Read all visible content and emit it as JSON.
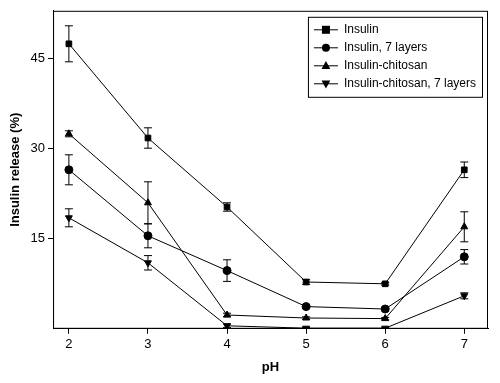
{
  "chart_data": {
    "type": "line",
    "x_label": "pH",
    "y_label": "Insulin release (%)",
    "x": [
      2,
      3,
      4,
      5,
      6,
      7
    ],
    "xlim": [
      1.8,
      7.3
    ],
    "xticks": [
      2,
      3,
      4,
      5,
      6,
      7
    ],
    "ylim": [
      0,
      53
    ],
    "yticks": [
      15,
      30,
      45
    ],
    "grid": false,
    "legend": "upper right",
    "series": [
      {
        "name": "Insulin",
        "color": "#000000",
        "marker": "square",
        "line_style": "solid",
        "values": [
          47.5,
          31.8,
          20.3,
          7.8,
          7.5,
          26.5
        ],
        "errors": [
          3.0,
          1.7,
          0.7,
          0.4,
          0.2,
          1.3
        ]
      },
      {
        "name": "Insulin, 7 layers",
        "color": "#000000",
        "marker": "circle",
        "line_style": "solid",
        "values": [
          26.5,
          15.5,
          9.7,
          3.7,
          3.3,
          12.0
        ],
        "errors": [
          2.5,
          2.0,
          1.8,
          0.3,
          0.3,
          1.2
        ]
      },
      {
        "name": "Insulin-chitosan",
        "color": "#000000",
        "marker": "triangle",
        "line_style": "solid",
        "values": [
          32.5,
          21.0,
          2.3,
          1.8,
          1.7,
          17.0
        ],
        "errors": [
          0.5,
          3.5,
          0.3,
          0.2,
          0.2,
          2.5
        ]
      },
      {
        "name": "Insulin-chitosan, 7 layers",
        "color": "#000000",
        "marker": "triangle_down",
        "line_style": "solid",
        "values": [
          18.5,
          11.0,
          0.5,
          0.1,
          0.1,
          5.5
        ],
        "errors": [
          1.5,
          1.2,
          0.3,
          0.1,
          0.1,
          0.5
        ]
      }
    ]
  }
}
